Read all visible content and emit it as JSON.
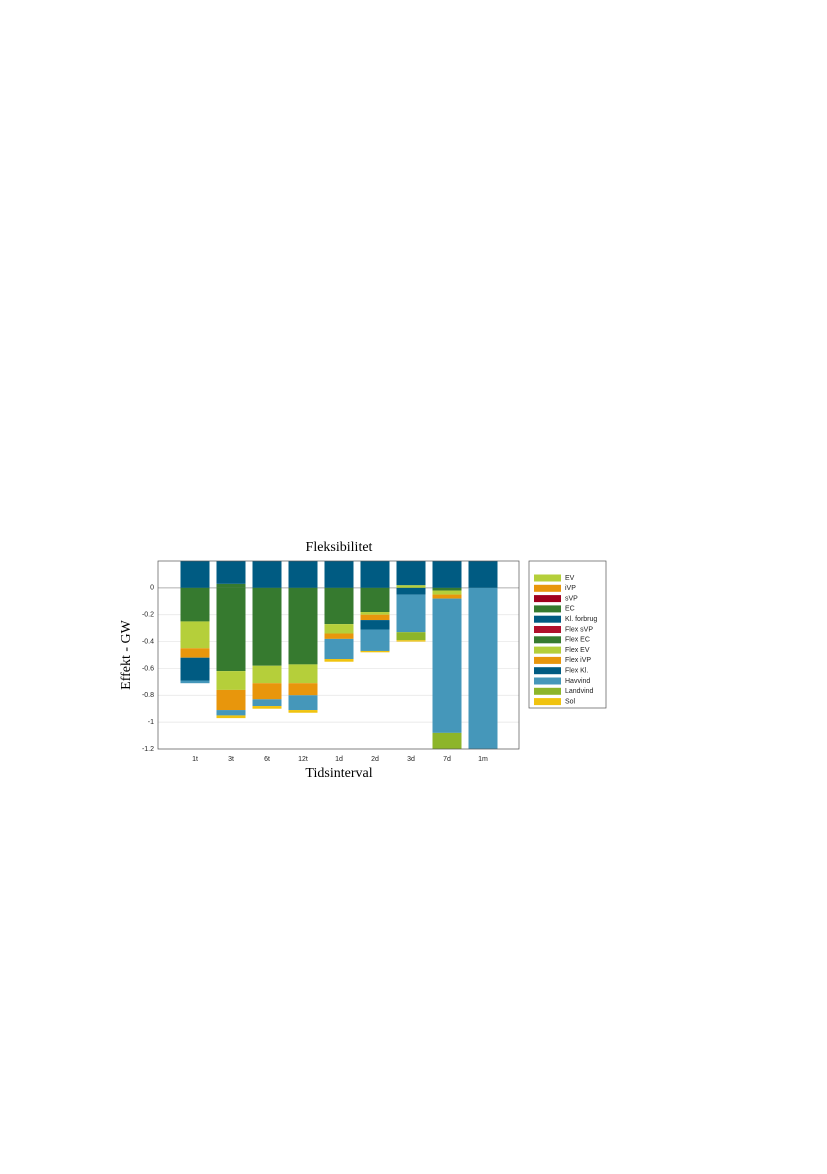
{
  "chart_data": {
    "type": "stacked-bar",
    "title": "Fleksibilitet",
    "x_label": "Tidsinterval",
    "y_label": "Effekt - GW",
    "categories": [
      "1t",
      "3t",
      "6t",
      "12t",
      "1d",
      "2d",
      "3d",
      "7d",
      "1m"
    ],
    "ylim": [
      -1.2,
      0.2
    ],
    "yticks": [
      -1.2,
      -1,
      -0.8,
      -0.6,
      -0.4,
      -0.2,
      0
    ],
    "grid": true,
    "legend": "outside-right",
    "series": [
      {
        "name": "EV",
        "color": "#b5cf3a",
        "values": [
          0,
          0,
          0,
          0,
          0,
          0,
          0.02,
          0,
          0
        ]
      },
      {
        "name": "iVP",
        "color": "#e8960c",
        "values": [
          0,
          0,
          0,
          0,
          0,
          0,
          0,
          0,
          0
        ]
      },
      {
        "name": "sVP",
        "color": "#a0001e",
        "values": [
          0,
          0,
          0,
          0,
          0,
          0,
          0,
          0,
          0
        ]
      },
      {
        "name": "EC",
        "color": "#367a2f",
        "values": [
          0,
          0.03,
          0,
          0,
          0,
          0,
          0,
          0,
          0
        ]
      },
      {
        "name": "Kl. forbrug",
        "color": "#005b82",
        "values": [
          0.2,
          0.2,
          0.2,
          0.2,
          0.2,
          0.2,
          0.2,
          0.2,
          0.2
        ]
      },
      {
        "name": "Flex sVP",
        "color": "#b0102c",
        "values": [
          0,
          0,
          0,
          0,
          0,
          0,
          0,
          0,
          0
        ]
      },
      {
        "name": "Flex EC",
        "color": "#367a2f",
        "values": [
          -0.25,
          -0.62,
          -0.58,
          -0.57,
          -0.27,
          -0.18,
          0,
          -0.02,
          0
        ]
      },
      {
        "name": "Flex EV",
        "color": "#b5cf3a",
        "values": [
          -0.2,
          -0.14,
          -0.13,
          -0.14,
          -0.07,
          -0.02,
          0,
          -0.03,
          0
        ]
      },
      {
        "name": "Flex iVP",
        "color": "#e8960c",
        "values": [
          -0.07,
          -0.15,
          -0.12,
          -0.09,
          -0.04,
          -0.04,
          0,
          -0.03,
          0
        ]
      },
      {
        "name": "Flex Kl.",
        "color": "#005b82",
        "values": [
          -0.17,
          0,
          0,
          0,
          0,
          -0.07,
          -0.05,
          0,
          0
        ]
      },
      {
        "name": "Havvind",
        "color": "#4597ba",
        "values": [
          -0.02,
          -0.04,
          -0.05,
          -0.11,
          -0.15,
          -0.16,
          -0.28,
          -1.0,
          -1.2
        ]
      },
      {
        "name": "Landvind",
        "color": "#8db52a",
        "values": [
          0,
          0,
          0,
          0,
          0,
          0,
          -0.06,
          -0.12,
          0
        ]
      },
      {
        "name": "Sol",
        "color": "#f0c30f",
        "values": [
          0,
          -0.02,
          -0.02,
          -0.02,
          -0.02,
          -0.01,
          -0.01,
          0,
          0
        ]
      }
    ]
  }
}
